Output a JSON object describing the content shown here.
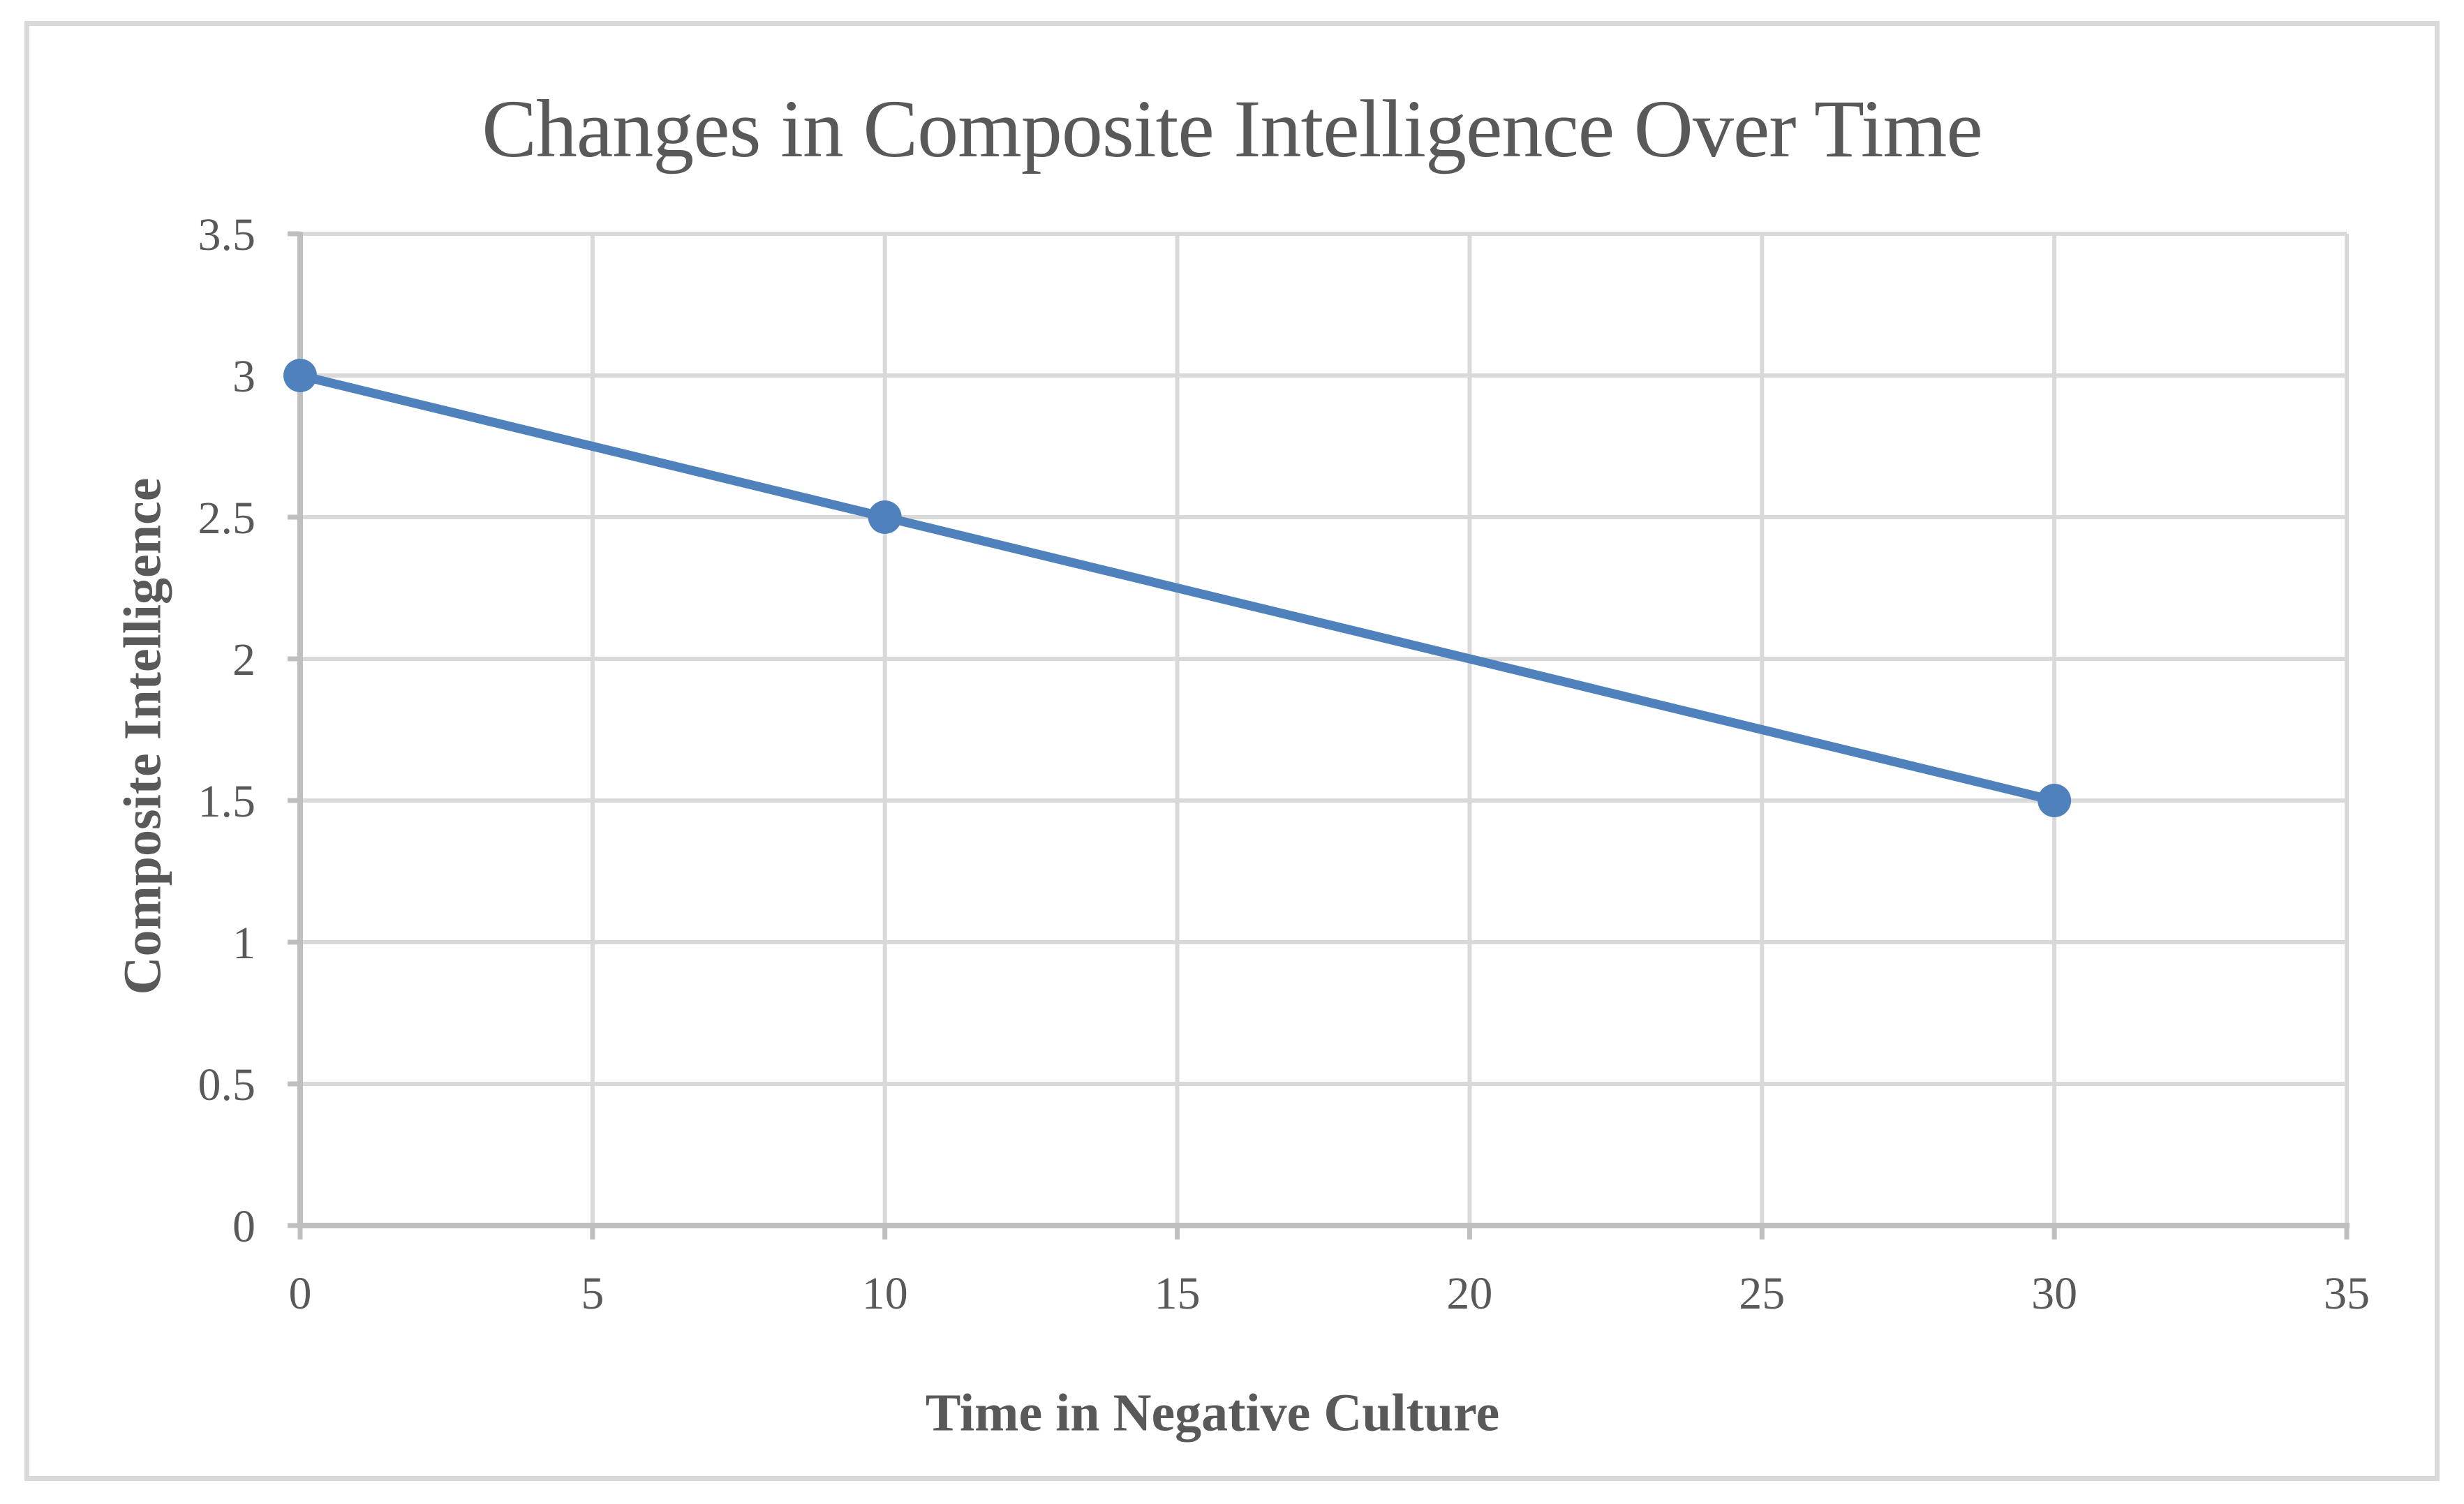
{
  "chart_data": {
    "type": "line",
    "title": "Changes in Composite Intelligence Over Time",
    "xlabel": "Time in Negative Culture",
    "ylabel": "Composite Intelligence",
    "series": [
      {
        "points": [
          [
            0,
            3
          ],
          [
            10,
            2.5
          ],
          [
            30,
            1.5
          ]
        ]
      }
    ],
    "xlim": [
      0,
      35
    ],
    "ylim": [
      0,
      3.5
    ],
    "xticks": [
      0,
      5,
      10,
      15,
      20,
      25,
      30,
      35
    ],
    "yticks": [
      0,
      0.5,
      1,
      1.5,
      2,
      2.5,
      3,
      3.5
    ],
    "grid": true,
    "legend": "none",
    "marker": "circle",
    "colors": {
      "series": "#4F81BD",
      "gridline": "#D9D9D9",
      "axis": "#BFBFBF",
      "text": "#595959",
      "frame_border": "#D9D9D9",
      "background": "#FFFFFF"
    }
  }
}
